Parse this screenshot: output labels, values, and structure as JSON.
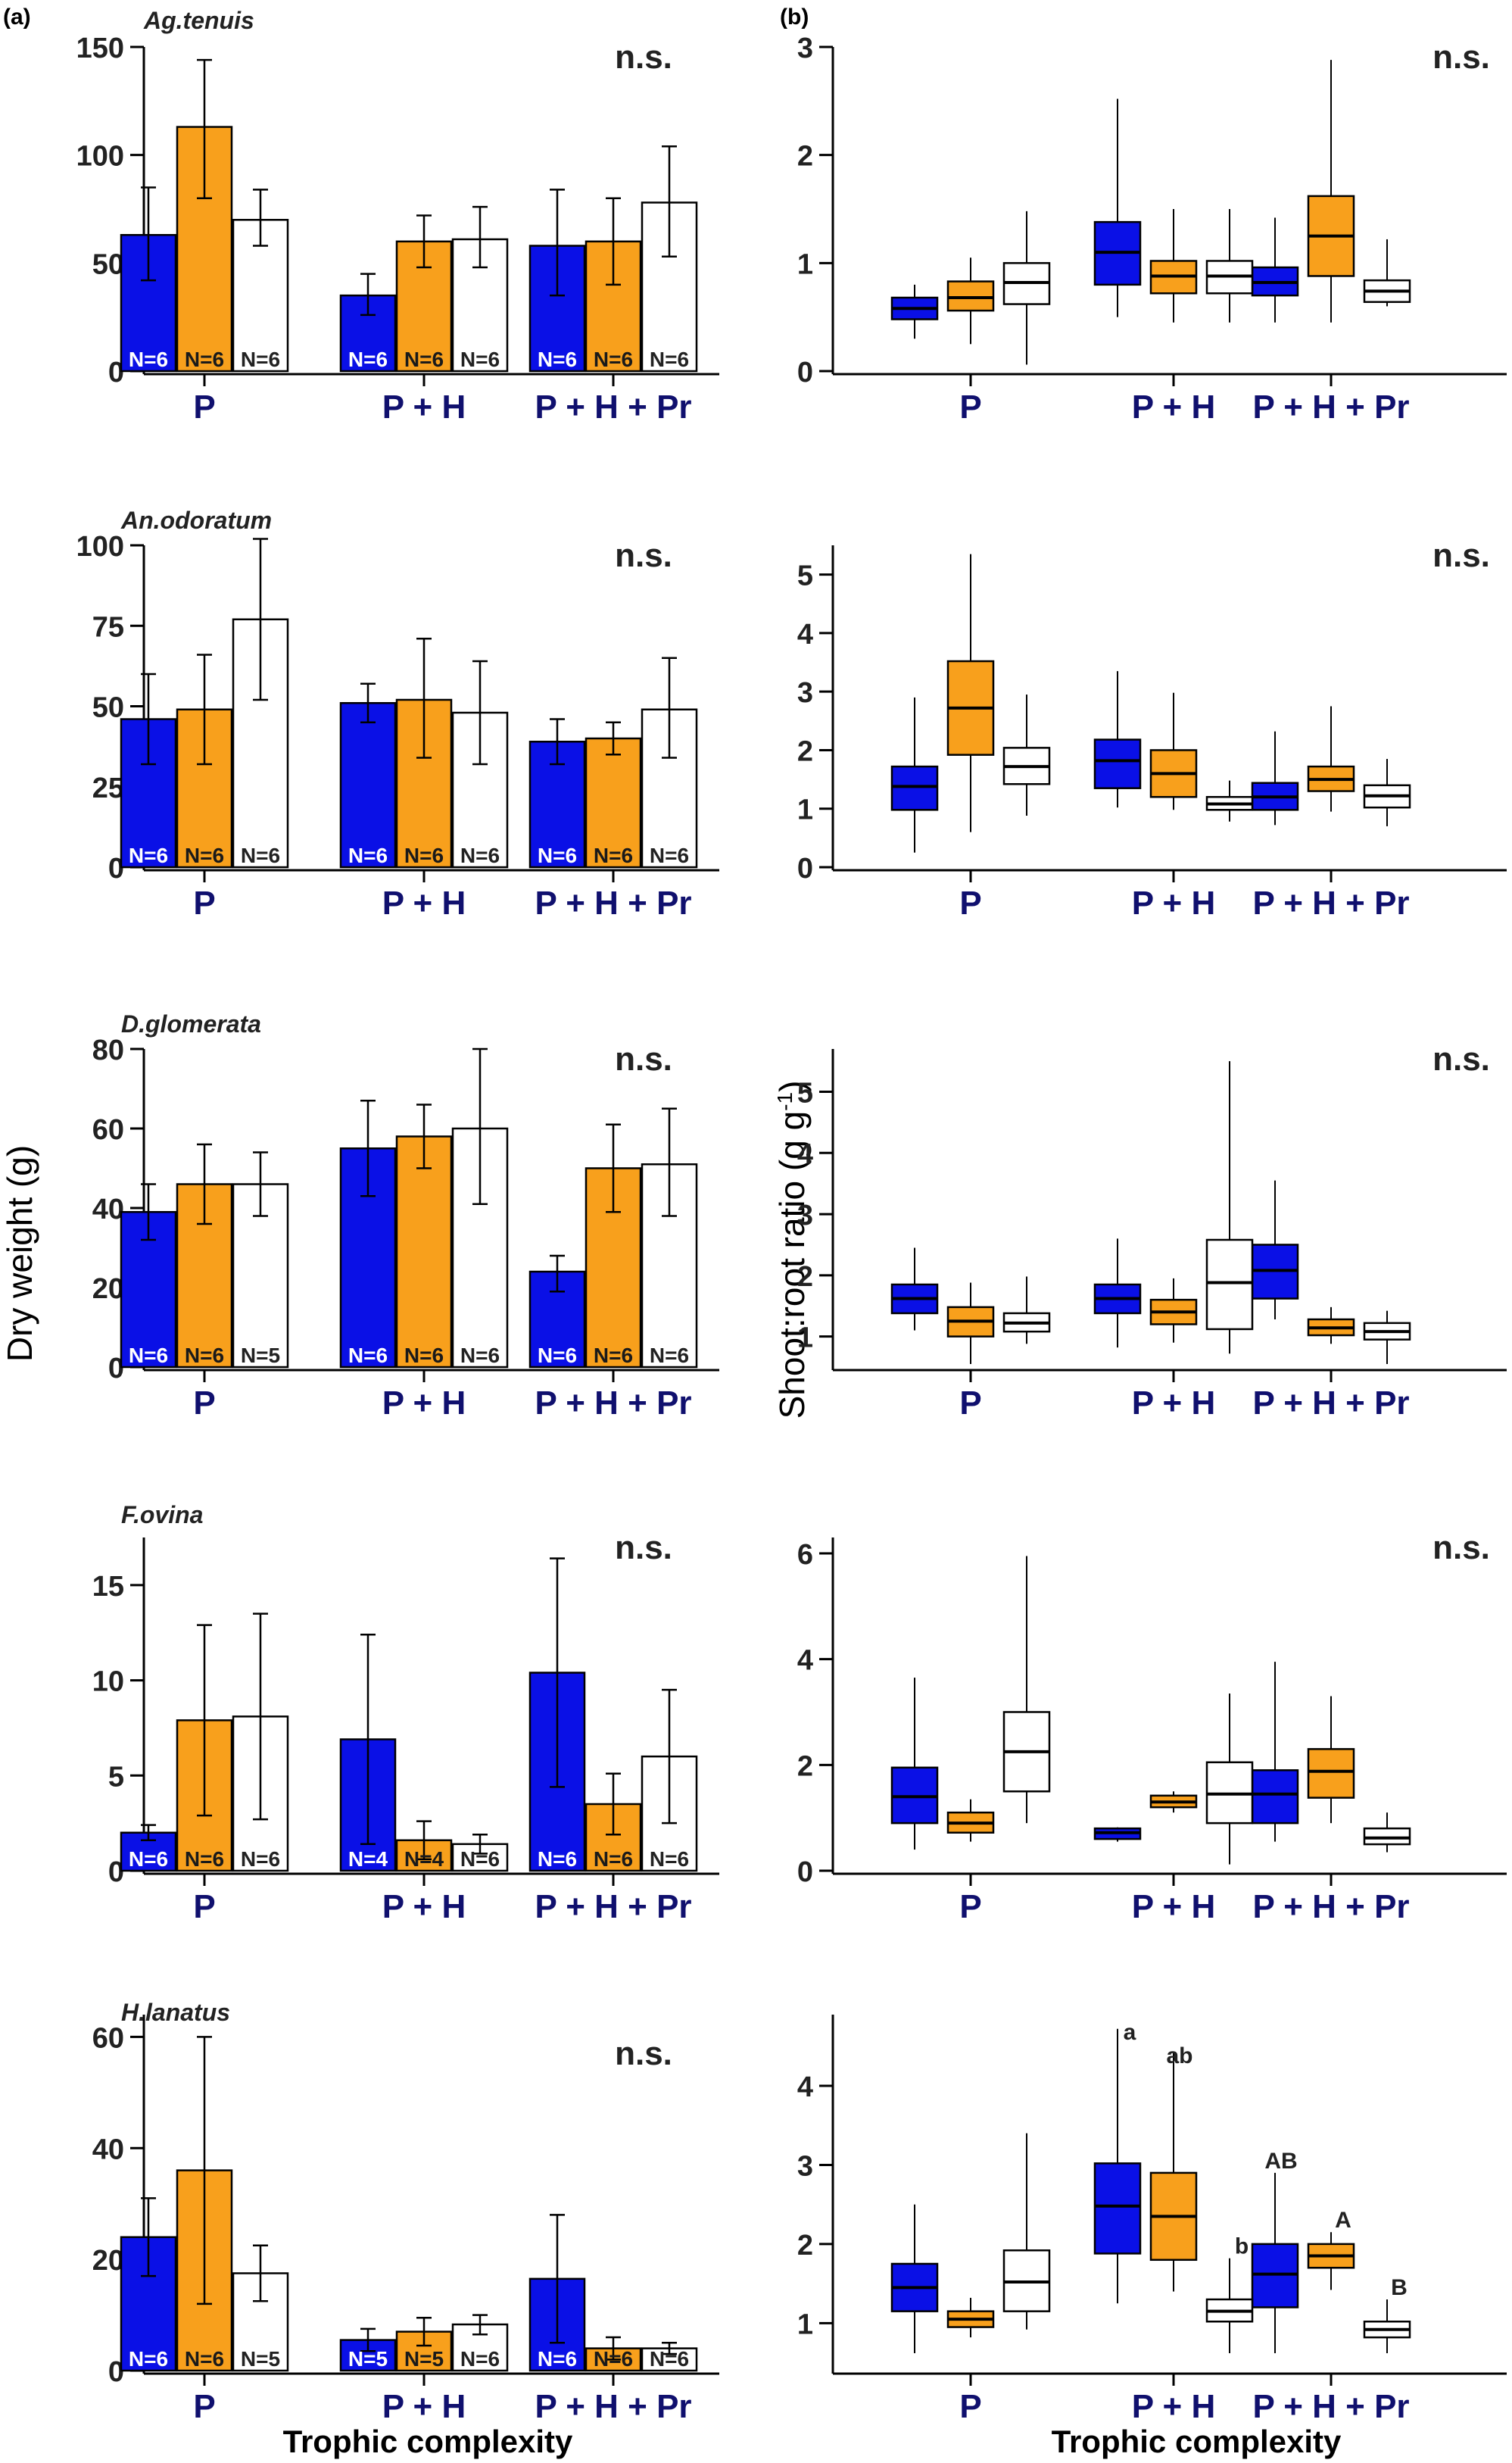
{
  "figure": {
    "panel_a_label": "(a)",
    "panel_b_label": "(b)",
    "y_label_left": "Dry weight (g)",
    "y_label_right": "Shoot:root ratio (g g",
    "y_label_right_sup": "-1",
    "x_label": "Trophic complexity",
    "groups": [
      "P",
      "P + H",
      "P + H + Pr"
    ],
    "colors": {
      "blue": "#0a10e6",
      "orange": "#f8a01c",
      "white": "#ffffff"
    }
  },
  "chart_data": [
    {
      "type": "bar",
      "panel": "a",
      "species": "Ag.tenuis",
      "significance": "n.s.",
      "ylim": [
        0,
        150
      ],
      "yticks": [
        0,
        50,
        100,
        150
      ],
      "categories": [
        "P",
        "P + H",
        "P + H + Pr"
      ],
      "series": [
        {
          "color": "blue",
          "values": [
            63,
            35,
            58
          ],
          "err_low": [
            42,
            26,
            35
          ],
          "err_high": [
            85,
            45,
            84
          ],
          "n": [
            "N=6",
            "N=6",
            "N=6"
          ]
        },
        {
          "color": "orange",
          "values": [
            113,
            60,
            60
          ],
          "err_low": [
            80,
            48,
            40
          ],
          "err_high": [
            144,
            72,
            80
          ],
          "n": [
            "N=6",
            "N=6",
            "N=6"
          ]
        },
        {
          "color": "white",
          "values": [
            70,
            61,
            78
          ],
          "err_low": [
            58,
            48,
            53
          ],
          "err_high": [
            84,
            76,
            104
          ],
          "n": [
            "N=6",
            "N=6",
            "N=6"
          ]
        }
      ]
    },
    {
      "type": "box",
      "panel": "b",
      "species": "Ag.tenuis",
      "significance": "n.s.",
      "ylim": [
        0,
        3
      ],
      "yticks": [
        0,
        1,
        2,
        3
      ],
      "categories": [
        "P",
        "P + H",
        "P + H + Pr"
      ],
      "series": [
        {
          "color": "blue",
          "boxes": [
            [
              0.3,
              0.48,
              0.58,
              0.68,
              0.8
            ],
            [
              0.5,
              0.8,
              1.1,
              1.38,
              2.52
            ],
            [
              0.45,
              0.7,
              0.82,
              0.96,
              1.42
            ]
          ]
        },
        {
          "color": "orange",
          "boxes": [
            [
              0.25,
              0.56,
              0.68,
              0.83,
              1.05
            ],
            [
              0.45,
              0.72,
              0.88,
              1.02,
              1.5
            ],
            [
              0.45,
              0.88,
              1.25,
              1.62,
              2.88
            ]
          ]
        },
        {
          "color": "white",
          "boxes": [
            [
              0.06,
              0.62,
              0.82,
              1.0,
              1.48
            ],
            [
              0.45,
              0.72,
              0.88,
              1.02,
              1.5
            ],
            [
              0.6,
              0.64,
              0.74,
              0.84,
              1.22
            ]
          ]
        }
      ],
      "letters": []
    },
    {
      "type": "bar",
      "panel": "a",
      "species": "An.odoratum",
      "significance": "n.s.",
      "ylim": [
        0,
        100
      ],
      "yticks": [
        0,
        25,
        50,
        75,
        100
      ],
      "categories": [
        "P",
        "P + H",
        "P + H + Pr"
      ],
      "series": [
        {
          "color": "blue",
          "values": [
            46,
            51,
            39
          ],
          "err_low": [
            32,
            45,
            32
          ],
          "err_high": [
            60,
            57,
            46
          ],
          "n": [
            "N=6",
            "N=6",
            "N=6"
          ]
        },
        {
          "color": "orange",
          "values": [
            49,
            52,
            40
          ],
          "err_low": [
            32,
            34,
            35
          ],
          "err_high": [
            66,
            71,
            45
          ],
          "n": [
            "N=6",
            "N=6",
            "N=6"
          ]
        },
        {
          "color": "white",
          "values": [
            77,
            48,
            49
          ],
          "err_low": [
            52,
            32,
            34
          ],
          "err_high": [
            102,
            64,
            65
          ],
          "n": [
            "N=6",
            "N=6",
            "N=6"
          ]
        }
      ]
    },
    {
      "type": "box",
      "panel": "b",
      "species": "An.odoratum",
      "significance": "n.s.",
      "ylim": [
        0,
        5.5
      ],
      "yticks": [
        0,
        1,
        2,
        3,
        4,
        5
      ],
      "categories": [
        "P",
        "P + H",
        "P + H + Pr"
      ],
      "series": [
        {
          "color": "blue",
          "boxes": [
            [
              0.25,
              0.98,
              1.38,
              1.72,
              2.9
            ],
            [
              1.02,
              1.35,
              1.82,
              2.18,
              3.35
            ],
            [
              0.72,
              0.98,
              1.2,
              1.44,
              2.32
            ]
          ]
        },
        {
          "color": "orange",
          "boxes": [
            [
              0.6,
              1.92,
              2.72,
              3.52,
              5.35
            ],
            [
              0.98,
              1.2,
              1.6,
              2.0,
              2.98
            ],
            [
              0.95,
              1.3,
              1.5,
              1.72,
              2.75
            ]
          ]
        },
        {
          "color": "white",
          "boxes": [
            [
              0.88,
              1.42,
              1.72,
              2.04,
              2.95
            ],
            [
              0.78,
              0.98,
              1.08,
              1.2,
              1.48
            ],
            [
              0.7,
              1.02,
              1.22,
              1.4,
              1.85
            ]
          ]
        }
      ],
      "letters": []
    },
    {
      "type": "bar",
      "panel": "a",
      "species": "D.glomerata",
      "significance": "n.s.",
      "ylim": [
        0,
        80
      ],
      "yticks": [
        0,
        20,
        40,
        60,
        80
      ],
      "categories": [
        "P",
        "P + H",
        "P + H + Pr"
      ],
      "series": [
        {
          "color": "blue",
          "values": [
            39,
            55,
            24
          ],
          "err_low": [
            32,
            43,
            19
          ],
          "err_high": [
            46,
            67,
            28
          ],
          "n": [
            "N=6",
            "N=6",
            "N=6"
          ]
        },
        {
          "color": "orange",
          "values": [
            46,
            58,
            50
          ],
          "err_low": [
            36,
            50,
            39
          ],
          "err_high": [
            56,
            66,
            61
          ],
          "n": [
            "N=6",
            "N=6",
            "N=6"
          ]
        },
        {
          "color": "white",
          "values": [
            46,
            60,
            51
          ],
          "err_low": [
            38,
            41,
            38
          ],
          "err_high": [
            54,
            80,
            65
          ],
          "n": [
            "N=5",
            "N=6",
            "N=6"
          ]
        }
      ]
    },
    {
      "type": "box",
      "panel": "b",
      "species": "D.glomerata",
      "significance": "n.s.",
      "ylim": [
        0.5,
        5.7
      ],
      "yticks": [
        1,
        2,
        3,
        4,
        5
      ],
      "categories": [
        "P",
        "P + H",
        "P + H + Pr"
      ],
      "series": [
        {
          "color": "blue",
          "boxes": [
            [
              1.1,
              1.38,
              1.62,
              1.85,
              2.45
            ],
            [
              0.82,
              1.38,
              1.62,
              1.85,
              2.6
            ],
            [
              1.28,
              1.62,
              2.08,
              2.5,
              3.55
            ]
          ]
        },
        {
          "color": "orange",
          "boxes": [
            [
              0.55,
              1.0,
              1.25,
              1.48,
              1.88
            ],
            [
              0.9,
              1.2,
              1.4,
              1.6,
              1.95
            ],
            [
              0.88,
              1.02,
              1.14,
              1.28,
              1.48
            ]
          ]
        },
        {
          "color": "white",
          "boxes": [
            [
              0.88,
              1.08,
              1.22,
              1.38,
              1.98
            ],
            [
              0.72,
              1.12,
              1.88,
              2.58,
              5.5
            ],
            [
              0.55,
              0.95,
              1.08,
              1.22,
              1.42
            ]
          ]
        }
      ],
      "letters": []
    },
    {
      "type": "bar",
      "panel": "a",
      "species": "F.ovina",
      "significance": "n.s.",
      "ylim": [
        0,
        17.5
      ],
      "yticks": [
        0,
        5,
        10,
        15
      ],
      "categories": [
        "P",
        "P + H",
        "P + H + Pr"
      ],
      "series": [
        {
          "color": "blue",
          "values": [
            2.0,
            6.9,
            10.4
          ],
          "err_low": [
            1.6,
            1.4,
            4.4
          ],
          "err_high": [
            2.4,
            12.4,
            16.4
          ],
          "n": [
            "N=6",
            "N=4",
            "N=6"
          ]
        },
        {
          "color": "orange",
          "values": [
            7.9,
            1.6,
            3.5
          ],
          "err_low": [
            2.9,
            0.6,
            1.9
          ],
          "err_high": [
            12.9,
            2.6,
            5.1
          ],
          "n": [
            "N=6",
            "N=4",
            "N=6"
          ]
        },
        {
          "color": "white",
          "values": [
            8.1,
            1.4,
            6.0
          ],
          "err_low": [
            2.7,
            0.9,
            2.5
          ],
          "err_high": [
            13.5,
            1.9,
            9.5
          ],
          "n": [
            "N=6",
            "N=6",
            "N=6"
          ]
        }
      ]
    },
    {
      "type": "box",
      "panel": "b",
      "species": "F.ovina",
      "significance": "n.s.",
      "ylim": [
        0,
        6.3
      ],
      "yticks": [
        0,
        2,
        4,
        6
      ],
      "categories": [
        "P",
        "P + H",
        "P + H + Pr"
      ],
      "series": [
        {
          "color": "blue",
          "boxes": [
            [
              0.4,
              0.9,
              1.4,
              1.95,
              3.65
            ],
            [
              0.55,
              0.6,
              0.72,
              0.8,
              0.82
            ],
            [
              0.55,
              0.9,
              1.45,
              1.9,
              3.95
            ]
          ]
        },
        {
          "color": "orange",
          "boxes": [
            [
              0.55,
              0.72,
              0.9,
              1.1,
              1.35
            ],
            [
              1.1,
              1.2,
              1.3,
              1.42,
              1.5
            ],
            [
              0.9,
              1.38,
              1.88,
              2.3,
              3.3
            ]
          ]
        },
        {
          "color": "white",
          "boxes": [
            [
              0.9,
              1.5,
              2.25,
              3.0,
              5.95
            ],
            [
              0.12,
              0.9,
              1.45,
              2.05,
              3.35
            ],
            [
              0.35,
              0.5,
              0.62,
              0.8,
              1.1
            ]
          ]
        }
      ],
      "letters": []
    },
    {
      "type": "bar",
      "panel": "a",
      "species": "H.lanatus",
      "significance": "n.s.",
      "ylim": [
        0,
        64
      ],
      "yticks": [
        0,
        20,
        40,
        60
      ],
      "categories": [
        "P",
        "P + H",
        "P + H + Pr"
      ],
      "series": [
        {
          "color": "blue",
          "values": [
            24,
            5.5,
            16.5
          ],
          "err_low": [
            17,
            3.5,
            5
          ],
          "err_high": [
            31,
            7.5,
            28
          ],
          "n": [
            "N=6",
            "N=5",
            "N=6"
          ]
        },
        {
          "color": "orange",
          "values": [
            36,
            7,
            4
          ],
          "err_low": [
            12,
            4.5,
            2
          ],
          "err_high": [
            60,
            9.5,
            6
          ],
          "n": [
            "N=6",
            "N=5",
            "N=6"
          ]
        },
        {
          "color": "white",
          "values": [
            17.5,
            8.3,
            4
          ],
          "err_low": [
            12.5,
            6.5,
            3
          ],
          "err_high": [
            22.5,
            10,
            5
          ],
          "n": [
            "N=5",
            "N=6",
            "N=6"
          ]
        }
      ]
    },
    {
      "type": "box",
      "panel": "b",
      "species": "H.lanatus",
      "significance": "",
      "ylim": [
        0.4,
        4.9
      ],
      "yticks": [
        1,
        2,
        3,
        4
      ],
      "categories": [
        "P",
        "P + H",
        "P + H + Pr"
      ],
      "series": [
        {
          "color": "blue",
          "boxes": [
            [
              0.62,
              1.15,
              1.45,
              1.75,
              2.5
            ],
            [
              1.25,
              1.88,
              2.48,
              3.02,
              4.72
            ],
            [
              0.62,
              1.2,
              1.62,
              2.0,
              2.9
            ]
          ]
        },
        {
          "color": "orange",
          "boxes": [
            [
              0.82,
              0.95,
              1.05,
              1.15,
              1.32
            ],
            [
              1.4,
              1.8,
              2.35,
              2.9,
              4.42
            ],
            [
              1.42,
              1.7,
              1.85,
              2.0,
              2.15
            ]
          ]
        },
        {
          "color": "white",
          "boxes": [
            [
              0.92,
              1.15,
              1.52,
              1.92,
              3.4
            ],
            [
              0.62,
              1.02,
              1.15,
              1.3,
              1.82
            ],
            [
              0.62,
              0.82,
              0.92,
              1.02,
              1.3
            ]
          ]
        }
      ],
      "letters": [
        {
          "group": 1,
          "series": 0,
          "text": "a"
        },
        {
          "group": 1,
          "series": 1,
          "text": "ab"
        },
        {
          "group": 1,
          "series": 2,
          "text": "b"
        },
        {
          "group": 2,
          "series": 0,
          "text": "AB"
        },
        {
          "group": 2,
          "series": 1,
          "text": "A"
        },
        {
          "group": 2,
          "series": 2,
          "text": "B"
        }
      ]
    }
  ]
}
